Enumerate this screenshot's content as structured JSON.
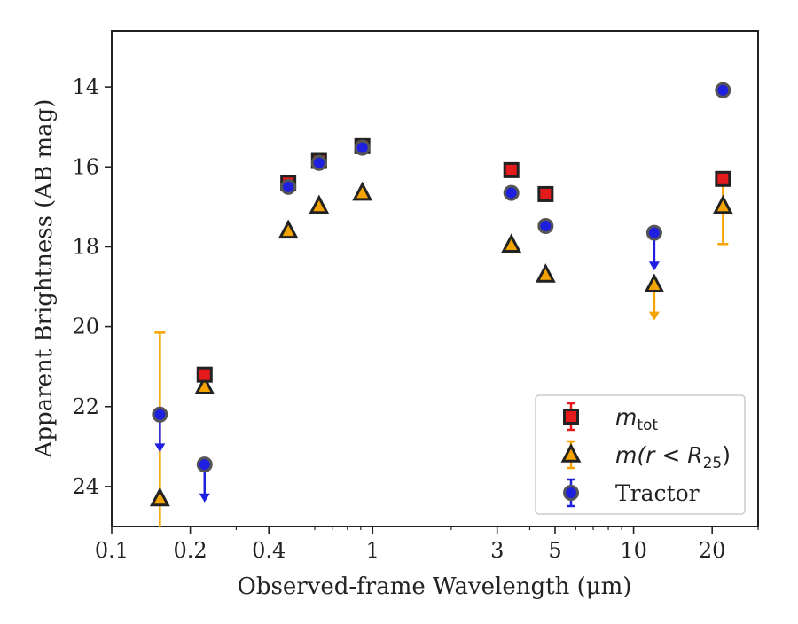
{
  "chart_data": {
    "type": "scatter",
    "xlabel": "Observed-frame Wavelength (μm)",
    "ylabel": "Apparent Brightness (AB mag)",
    "x_scale": "log",
    "xlim": [
      0.1,
      30
    ],
    "ylim": [
      25,
      12.6
    ],
    "y_inverted": true,
    "grid": false,
    "legend_position": "lower-right",
    "x_ticks": [
      {
        "value": 0.1,
        "label": "0.1"
      },
      {
        "value": 0.2,
        "label": "0.2"
      },
      {
        "value": 0.4,
        "label": "0.4"
      },
      {
        "value": 1,
        "label": "1"
      },
      {
        "value": 3,
        "label": "3"
      },
      {
        "value": 5,
        "label": "5"
      },
      {
        "value": 10,
        "label": "10"
      },
      {
        "value": 20,
        "label": "20"
      }
    ],
    "y_ticks": [
      {
        "value": 14,
        "label": "14"
      },
      {
        "value": 16,
        "label": "16"
      },
      {
        "value": 18,
        "label": "18"
      },
      {
        "value": 20,
        "label": "20"
      },
      {
        "value": 22,
        "label": "22"
      },
      {
        "value": 24,
        "label": "24"
      }
    ],
    "series": [
      {
        "name": "m_tot",
        "legend_main": "m",
        "legend_sub": "tot",
        "marker": "square",
        "color": "#e41a1c",
        "edge": "#222222",
        "points": [
          {
            "x": 0.227,
            "y": 21.2
          },
          {
            "x": 0.475,
            "y": 16.4
          },
          {
            "x": 0.623,
            "y": 15.85
          },
          {
            "x": 0.913,
            "y": 15.48
          },
          {
            "x": 3.4,
            "y": 16.08
          },
          {
            "x": 4.6,
            "y": 16.68
          },
          {
            "x": 22,
            "y": 16.3
          }
        ]
      },
      {
        "name": "m(r<R_25)",
        "legend_main": "m(r < R",
        "legend_sub": "25",
        "legend_end": ")",
        "marker": "triangle",
        "color": "#f5a300",
        "edge": "#222222",
        "points": [
          {
            "x": 0.153,
            "y": 24.3,
            "err_up": 4.15,
            "err_down": 0.7
          },
          {
            "x": 0.227,
            "y": 21.5
          },
          {
            "x": 0.475,
            "y": 17.6
          },
          {
            "x": 0.623,
            "y": 16.98
          },
          {
            "x": 0.913,
            "y": 16.65
          },
          {
            "x": 3.4,
            "y": 17.95
          },
          {
            "x": 4.6,
            "y": 18.7
          },
          {
            "x": 12,
            "y": 18.95,
            "limit_to": 19.8
          },
          {
            "x": 22,
            "y": 16.98,
            "err_up": 0.8,
            "err_down": 0.95
          }
        ]
      },
      {
        "name": "Tractor",
        "legend_main": "Tractor",
        "marker": "circle",
        "color": "#1f1fe0",
        "edge": "#555555",
        "points": [
          {
            "x": 0.153,
            "y": 22.2,
            "limit_to": 23.1
          },
          {
            "x": 0.227,
            "y": 23.45,
            "limit_to": 24.35
          },
          {
            "x": 0.475,
            "y": 16.5
          },
          {
            "x": 0.623,
            "y": 15.9
          },
          {
            "x": 0.913,
            "y": 15.52
          },
          {
            "x": 3.4,
            "y": 16.65
          },
          {
            "x": 4.6,
            "y": 17.48
          },
          {
            "x": 12,
            "y": 17.65,
            "limit_to": 18.55
          },
          {
            "x": 22,
            "y": 14.08
          }
        ]
      }
    ]
  }
}
